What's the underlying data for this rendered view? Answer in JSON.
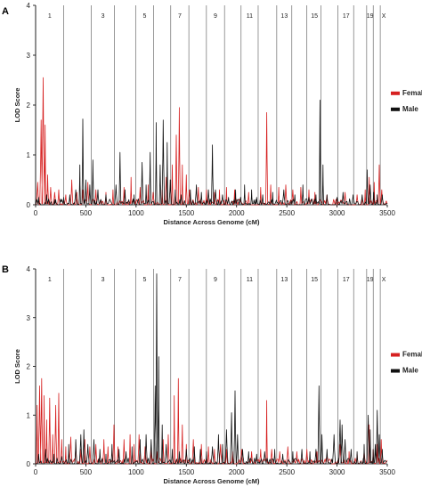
{
  "chart_data": [
    {
      "type": "line",
      "panel_label": "A",
      "xlabel": "Distance Across Genome (cM)",
      "ylabel": "LOD Score",
      "xlim": [
        0,
        3500
      ],
      "ylim": [
        0,
        4
      ],
      "x_ticks": [
        0,
        500,
        1000,
        1500,
        2000,
        2500,
        3000,
        3500
      ],
      "y_ticks": [
        0,
        1,
        2,
        3,
        4
      ],
      "chromosome_boundaries": [
        0,
        280,
        555,
        785,
        995,
        1175,
        1345,
        1525,
        1700,
        1880,
        2045,
        2215,
        2400,
        2550,
        2700,
        2840,
        3010,
        3165,
        3295,
        3360,
        3430
      ],
      "chromosome_labels": [
        {
          "label": "1",
          "x": 140
        },
        {
          "label": "3",
          "x": 670
        },
        {
          "label": "5",
          "x": 1085
        },
        {
          "label": "7",
          "x": 1435
        },
        {
          "label": "9",
          "x": 1790
        },
        {
          "label": "11",
          "x": 2130
        },
        {
          "label": "13",
          "x": 2475
        },
        {
          "label": "15",
          "x": 2775
        },
        {
          "label": "17",
          "x": 3090
        },
        {
          "label": "19",
          "x": 3328
        },
        {
          "label": "X",
          "x": 3465
        }
      ],
      "legend_position": "right",
      "series": [
        {
          "name": "Female",
          "color": "#d62020",
          "peaks": [
            [
              20,
              0.45
            ],
            [
              55,
              1.7
            ],
            [
              75,
              2.55
            ],
            [
              95,
              1.6
            ],
            [
              120,
              0.6
            ],
            [
              150,
              0.35
            ],
            [
              190,
              0.25
            ],
            [
              230,
              0.3
            ],
            [
              300,
              0.2
            ],
            [
              360,
              0.5
            ],
            [
              410,
              0.25
            ],
            [
              470,
              0.3
            ],
            [
              520,
              0.45
            ],
            [
              600,
              0.3
            ],
            [
              700,
              0.25
            ],
            [
              770,
              0.3
            ],
            [
              880,
              0.35
            ],
            [
              950,
              0.55
            ],
            [
              1040,
              0.35
            ],
            [
              1120,
              0.4
            ],
            [
              1170,
              0.25
            ],
            [
              1260,
              0.3
            ],
            [
              1300,
              0.55
            ],
            [
              1360,
              0.8
            ],
            [
              1400,
              1.4
            ],
            [
              1430,
              1.95
            ],
            [
              1460,
              0.8
            ],
            [
              1500,
              0.6
            ],
            [
              1530,
              0.3
            ],
            [
              1620,
              0.35
            ],
            [
              1700,
              0.3
            ],
            [
              1780,
              0.25
            ],
            [
              1830,
              0.3
            ],
            [
              1900,
              0.35
            ],
            [
              1980,
              0.3
            ],
            [
              2120,
              0.25
            ],
            [
              2240,
              0.35
            ],
            [
              2300,
              1.85
            ],
            [
              2340,
              0.4
            ],
            [
              2420,
              0.35
            ],
            [
              2490,
              0.4
            ],
            [
              2560,
              0.3
            ],
            [
              2640,
              0.35
            ],
            [
              2720,
              0.3
            ],
            [
              2780,
              0.25
            ],
            [
              2900,
              0.2
            ],
            [
              3080,
              0.25
            ],
            [
              3200,
              0.2
            ],
            [
              3280,
              0.3
            ],
            [
              3320,
              0.55
            ],
            [
              3370,
              0.45
            ],
            [
              3420,
              0.8
            ],
            [
              3445,
              0.3
            ]
          ]
        },
        {
          "name": "Male",
          "color": "#111111",
          "peaks": [
            [
              30,
              0.15
            ],
            [
              110,
              0.2
            ],
            [
              200,
              0.1
            ],
            [
              280,
              0.15
            ],
            [
              340,
              0.2
            ],
            [
              400,
              0.3
            ],
            [
              440,
              0.8
            ],
            [
              470,
              1.72
            ],
            [
              500,
              0.5
            ],
            [
              540,
              0.4
            ],
            [
              570,
              0.9
            ],
            [
              620,
              0.3
            ],
            [
              700,
              0.2
            ],
            [
              800,
              0.4
            ],
            [
              840,
              1.05
            ],
            [
              890,
              0.3
            ],
            [
              980,
              0.2
            ],
            [
              1060,
              0.85
            ],
            [
              1100,
              0.4
            ],
            [
              1140,
              1.05
            ],
            [
              1200,
              1.65
            ],
            [
              1240,
              0.8
            ],
            [
              1270,
              1.7
            ],
            [
              1310,
              1.25
            ],
            [
              1340,
              0.5
            ],
            [
              1390,
              0.3
            ],
            [
              1450,
              0.2
            ],
            [
              1540,
              0.3
            ],
            [
              1600,
              0.4
            ],
            [
              1650,
              0.25
            ],
            [
              1720,
              0.3
            ],
            [
              1760,
              1.2
            ],
            [
              1790,
              0.3
            ],
            [
              1860,
              0.2
            ],
            [
              1920,
              0.15
            ],
            [
              1990,
              0.3
            ],
            [
              2040,
              0.15
            ],
            [
              2080,
              0.4
            ],
            [
              2150,
              0.3
            ],
            [
              2200,
              0.15
            ],
            [
              2260,
              0.2
            ],
            [
              2360,
              0.25
            ],
            [
              2470,
              0.3
            ],
            [
              2580,
              0.2
            ],
            [
              2660,
              0.4
            ],
            [
              2720,
              0.15
            ],
            [
              2790,
              0.2
            ],
            [
              2830,
              2.1
            ],
            [
              2860,
              0.8
            ],
            [
              2900,
              0.2
            ],
            [
              3000,
              0.15
            ],
            [
              3060,
              0.25
            ],
            [
              3160,
              0.2
            ],
            [
              3250,
              0.2
            ],
            [
              3300,
              0.7
            ],
            [
              3330,
              0.4
            ],
            [
              3365,
              0.25
            ],
            [
              3400,
              0.2
            ],
            [
              3450,
              0.2
            ]
          ]
        }
      ]
    },
    {
      "type": "line",
      "panel_label": "B",
      "xlabel": "Distance Across Genome (cM)",
      "ylabel": "LOD Score",
      "xlim": [
        0,
        3500
      ],
      "ylim": [
        0,
        4
      ],
      "x_ticks": [
        0,
        500,
        1000,
        1500,
        2000,
        2500,
        3000,
        3500
      ],
      "y_ticks": [
        0,
        1,
        2,
        3,
        4
      ],
      "chromosome_boundaries": [
        0,
        280,
        555,
        785,
        995,
        1175,
        1345,
        1525,
        1700,
        1880,
        2045,
        2215,
        2400,
        2550,
        2700,
        2840,
        3010,
        3165,
        3295,
        3360,
        3430
      ],
      "chromosome_labels": [
        {
          "label": "1",
          "x": 140
        },
        {
          "label": "3",
          "x": 670
        },
        {
          "label": "5",
          "x": 1085
        },
        {
          "label": "7",
          "x": 1435
        },
        {
          "label": "9",
          "x": 1790
        },
        {
          "label": "11",
          "x": 2130
        },
        {
          "label": "13",
          "x": 2475
        },
        {
          "label": "15",
          "x": 2775
        },
        {
          "label": "17",
          "x": 3090
        },
        {
          "label": "19",
          "x": 3328
        },
        {
          "label": "X",
          "x": 3465
        }
      ],
      "legend_position": "right",
      "series": [
        {
          "name": "Female",
          "color": "#d62020",
          "peaks": [
            [
              15,
              1.2
            ],
            [
              40,
              1.6
            ],
            [
              60,
              1.75
            ],
            [
              85,
              1.4
            ],
            [
              110,
              0.9
            ],
            [
              140,
              1.35
            ],
            [
              170,
              0.6
            ],
            [
              200,
              1.2
            ],
            [
              230,
              1.45
            ],
            [
              260,
              0.5
            ],
            [
              300,
              0.35
            ],
            [
              350,
              0.55
            ],
            [
              400,
              0.45
            ],
            [
              450,
              0.3
            ],
            [
              490,
              0.5
            ],
            [
              540,
              0.35
            ],
            [
              600,
              0.4
            ],
            [
              680,
              0.5
            ],
            [
              720,
              0.35
            ],
            [
              780,
              0.8
            ],
            [
              820,
              0.35
            ],
            [
              880,
              0.5
            ],
            [
              940,
              0.6
            ],
            [
              980,
              0.4
            ],
            [
              1030,
              0.6
            ],
            [
              1090,
              0.35
            ],
            [
              1150,
              0.3
            ],
            [
              1210,
              0.25
            ],
            [
              1270,
              0.5
            ],
            [
              1320,
              0.6
            ],
            [
              1380,
              1.4
            ],
            [
              1420,
              1.75
            ],
            [
              1460,
              0.8
            ],
            [
              1500,
              0.4
            ],
            [
              1570,
              0.5
            ],
            [
              1650,
              0.4
            ],
            [
              1720,
              0.35
            ],
            [
              1780,
              0.3
            ],
            [
              1840,
              0.4
            ],
            [
              1900,
              0.3
            ],
            [
              1960,
              0.25
            ],
            [
              2050,
              0.3
            ],
            [
              2150,
              0.25
            ],
            [
              2240,
              0.3
            ],
            [
              2300,
              1.3
            ],
            [
              2350,
              0.3
            ],
            [
              2430,
              0.25
            ],
            [
              2510,
              0.35
            ],
            [
              2600,
              0.25
            ],
            [
              2700,
              0.3
            ],
            [
              2800,
              0.25
            ],
            [
              2900,
              0.2
            ],
            [
              3030,
              0.4
            ],
            [
              3120,
              0.25
            ],
            [
              3200,
              0.2
            ],
            [
              3270,
              0.25
            ],
            [
              3320,
              0.8
            ],
            [
              3360,
              0.3
            ],
            [
              3400,
              0.4
            ],
            [
              3440,
              0.5
            ]
          ]
        },
        {
          "name": "Male",
          "color": "#111111",
          "peaks": [
            [
              30,
              0.2
            ],
            [
              100,
              0.3
            ],
            [
              180,
              0.2
            ],
            [
              260,
              0.15
            ],
            [
              330,
              0.4
            ],
            [
              400,
              0.5
            ],
            [
              450,
              0.6
            ],
            [
              480,
              0.7
            ],
            [
              520,
              0.4
            ],
            [
              580,
              0.5
            ],
            [
              640,
              0.3
            ],
            [
              700,
              0.2
            ],
            [
              760,
              0.4
            ],
            [
              830,
              0.3
            ],
            [
              900,
              0.25
            ],
            [
              960,
              0.35
            ],
            [
              1040,
              0.5
            ],
            [
              1100,
              0.6
            ],
            [
              1150,
              0.5
            ],
            [
              1190,
              1.6
            ],
            [
              1205,
              3.9
            ],
            [
              1225,
              2.2
            ],
            [
              1260,
              0.8
            ],
            [
              1300,
              0.4
            ],
            [
              1360,
              0.3
            ],
            [
              1430,
              0.25
            ],
            [
              1500,
              0.3
            ],
            [
              1580,
              0.35
            ],
            [
              1640,
              0.3
            ],
            [
              1700,
              0.25
            ],
            [
              1760,
              0.35
            ],
            [
              1820,
              0.6
            ],
            [
              1860,
              0.4
            ],
            [
              1900,
              0.7
            ],
            [
              1950,
              1.05
            ],
            [
              1985,
              1.5
            ],
            [
              2010,
              0.6
            ],
            [
              2060,
              0.3
            ],
            [
              2120,
              0.25
            ],
            [
              2200,
              0.2
            ],
            [
              2280,
              0.25
            ],
            [
              2380,
              0.3
            ],
            [
              2460,
              0.2
            ],
            [
              2560,
              0.25
            ],
            [
              2650,
              0.3
            ],
            [
              2730,
              0.25
            ],
            [
              2790,
              0.3
            ],
            [
              2820,
              1.6
            ],
            [
              2850,
              0.6
            ],
            [
              2900,
              0.3
            ],
            [
              2970,
              0.6
            ],
            [
              3030,
              0.9
            ],
            [
              3050,
              0.8
            ],
            [
              3080,
              0.5
            ],
            [
              3140,
              0.3
            ],
            [
              3200,
              0.25
            ],
            [
              3270,
              0.4
            ],
            [
              3310,
              1.0
            ],
            [
              3330,
              0.7
            ],
            [
              3360,
              0.3
            ],
            [
              3380,
              0.4
            ],
            [
              3400,
              1.1
            ],
            [
              3420,
              0.6
            ],
            [
              3450,
              0.3
            ]
          ]
        }
      ]
    }
  ]
}
